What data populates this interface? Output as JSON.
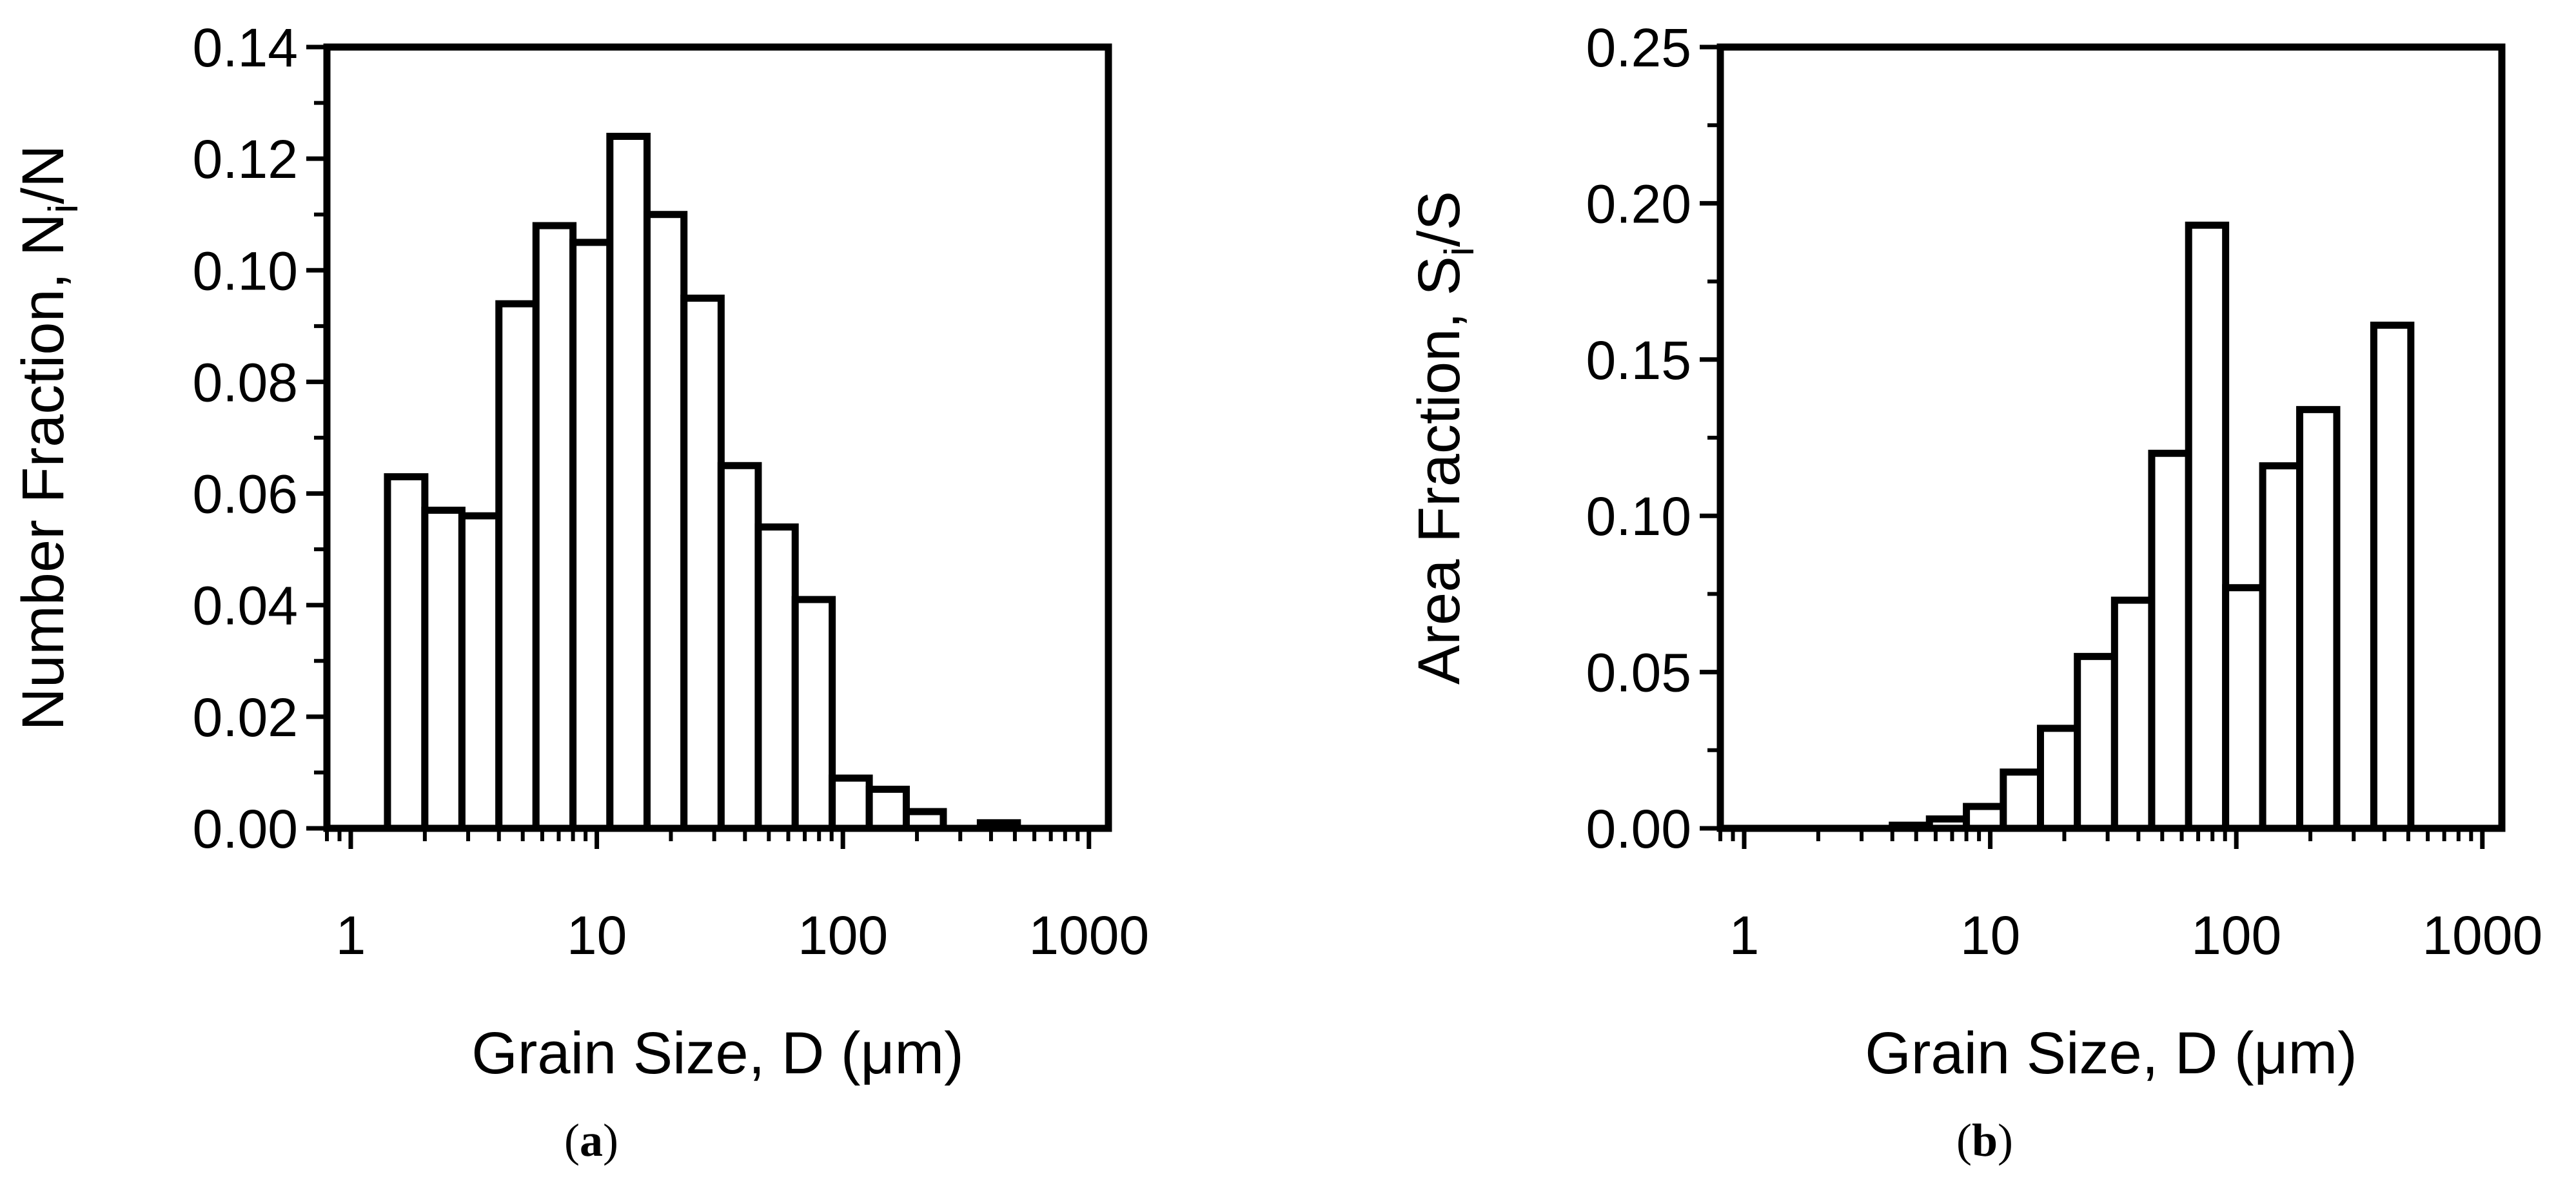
{
  "colors": {
    "ink": "#000000",
    "bar_fill": "#ffffff",
    "background": "#ffffff"
  },
  "chart_data": [
    {
      "type": "bar",
      "panel_label_parts": [
        "(",
        "a",
        ")"
      ],
      "title": "",
      "xlabel": "Grain Size, D (μm)",
      "ylabel": {
        "main": "Number Fraction, N",
        "sub1": "i",
        "mid": "/N"
      },
      "xscale": "log",
      "xlim": [
        0.8,
        1200
      ],
      "ylim": [
        0,
        0.14
      ],
      "x_ticks": [
        "1",
        "10",
        "100",
        "1000"
      ],
      "y_ticks": [
        "0.00",
        "0.02",
        "0.04",
        "0.06",
        "0.08",
        "0.10",
        "0.12",
        "0.14"
      ],
      "bin_edges": [
        1.41,
        2.0,
        2.83,
        4.0,
        5.66,
        8.0,
        11.3,
        16.0,
        22.6,
        32.0,
        45.3,
        64.0,
        90.5,
        128,
        181,
        256,
        362,
        512,
        724,
        1024
      ],
      "values": [
        0.063,
        0.057,
        0.056,
        0.094,
        0.108,
        0.105,
        0.124,
        0.11,
        0.095,
        0.065,
        0.054,
        0.041,
        0.009,
        0.007,
        0.003,
        0.0,
        0.001,
        0.0,
        0.0
      ]
    },
    {
      "type": "bar",
      "panel_label_parts": [
        "(",
        "b",
        ")"
      ],
      "title": "",
      "xlabel": "Grain Size, D (μm)",
      "ylabel": {
        "main": "Area Fraction, S",
        "sub1": "i",
        "mid": "/S"
      },
      "xscale": "log",
      "xlim": [
        0.8,
        1200
      ],
      "ylim": [
        0,
        0.25
      ],
      "x_ticks": [
        "1",
        "10",
        "100",
        "1000"
      ],
      "y_ticks": [
        "0.00",
        "0.05",
        "0.10",
        "0.15",
        "0.20",
        "0.25"
      ],
      "bin_edges": [
        1.41,
        2.0,
        2.83,
        4.0,
        5.66,
        8.0,
        11.3,
        16.0,
        22.6,
        32.0,
        45.3,
        64.0,
        90.5,
        128,
        181,
        256,
        362,
        512
      ],
      "values": [
        0.0,
        0.0,
        0.0,
        0.001,
        0.003,
        0.007,
        0.018,
        0.032,
        0.055,
        0.073,
        0.12,
        0.193,
        0.077,
        0.116,
        0.134,
        0.0,
        0.161
      ]
    }
  ]
}
